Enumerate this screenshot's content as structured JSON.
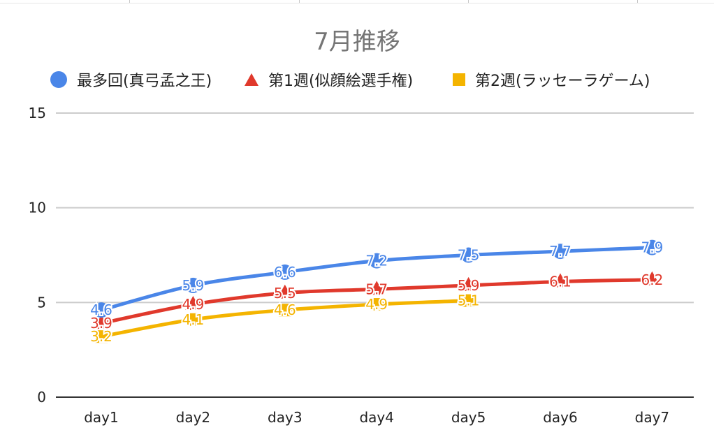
{
  "colors": {
    "series1": "#4a86e8",
    "series2": "#e0392c",
    "series3": "#f4b400",
    "grid": "#cccccc",
    "axis": "#333333"
  },
  "chart_data": {
    "type": "line",
    "title": "7月推移",
    "categories": [
      "day1",
      "day2",
      "day3",
      "day4",
      "day5",
      "day6",
      "day7"
    ],
    "ylim": [
      0,
      15
    ],
    "yticks": [
      "0",
      "5",
      "10",
      "15"
    ],
    "grid": true,
    "legend_position": "top",
    "series": [
      {
        "name": "最多回(真弓孟之王)",
        "marker": "circle",
        "color": "#4a86e8",
        "values": [
          4.6,
          5.9,
          6.6,
          7.2,
          7.5,
          7.7,
          7.9
        ]
      },
      {
        "name": "第1週(似顔絵選手権)",
        "marker": "triangle",
        "color": "#e0392c",
        "values": [
          3.9,
          4.9,
          5.5,
          5.7,
          5.9,
          6.1,
          6.2
        ]
      },
      {
        "name": "第2週(ラッセーラゲーム)",
        "marker": "square",
        "color": "#f4b400",
        "values": [
          3.2,
          4.1,
          4.6,
          4.9,
          5.1,
          null,
          null
        ]
      }
    ]
  }
}
